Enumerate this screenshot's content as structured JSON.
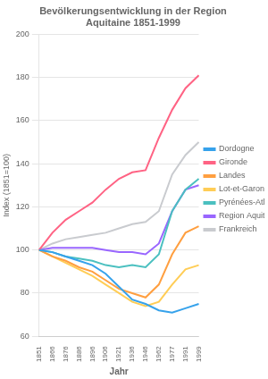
{
  "chart_data": {
    "type": "line",
    "title": "Bevölkerungsentwicklung in der Region\nAquitaine 1851-1999",
    "xlabel": "Jahr",
    "ylabel": "Index (1851=100)",
    "categories": [
      "1851",
      "1866",
      "1876",
      "1886",
      "1896",
      "1906",
      "1921",
      "1936",
      "1946",
      "1962",
      "1977",
      "1991",
      "1999"
    ],
    "series": [
      {
        "name": "Dordogne",
        "values": [
          100,
          99,
          97,
          95,
          93,
          89,
          83,
          77,
          75,
          72,
          71,
          73,
          75
        ]
      },
      {
        "name": "Gironde",
        "values": [
          100,
          108,
          114,
          118,
          122,
          128,
          133,
          136,
          137,
          152,
          165,
          175,
          181
        ]
      },
      {
        "name": "Landes",
        "values": [
          100,
          97,
          95,
          92,
          90,
          86,
          82,
          80,
          78,
          84,
          98,
          108,
          111
        ]
      },
      {
        "name": "Lot-et-Garonne",
        "values": [
          100,
          97,
          94,
          91,
          88,
          84,
          80,
          76,
          74,
          76,
          84,
          91,
          93
        ]
      },
      {
        "name": "Pyrénées-Atlantiques",
        "values": [
          100,
          99,
          97,
          96,
          95,
          93,
          92,
          93,
          92,
          98,
          118,
          128,
          133
        ]
      },
      {
        "name": "Region Aquitaine",
        "values": [
          100,
          101,
          101,
          101,
          101,
          100,
          99,
          99,
          98,
          103,
          118,
          128,
          130
        ]
      },
      {
        "name": "Frankreich",
        "values": [
          100,
          103,
          105,
          106,
          107,
          108,
          110,
          112,
          113,
          118,
          135,
          144,
          150
        ]
      }
    ],
    "ylim": [
      60,
      200
    ],
    "yticks": [
      60,
      80,
      100,
      120,
      140,
      160,
      180,
      200
    ],
    "grid": true,
    "legend": "right"
  }
}
